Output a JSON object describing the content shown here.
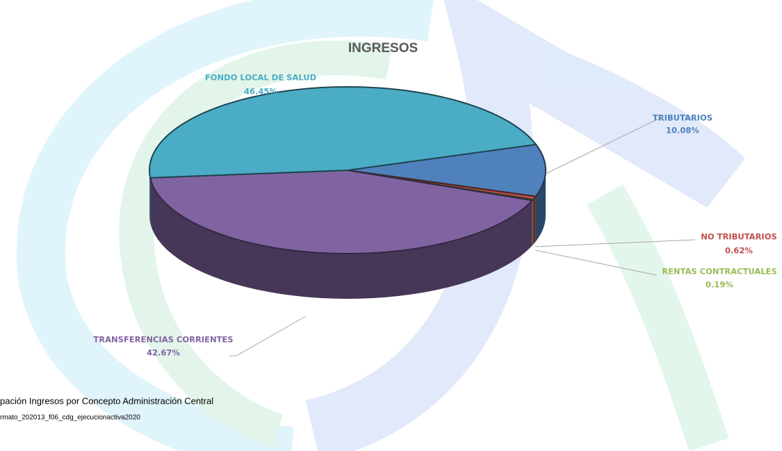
{
  "chart_data": {
    "type": "pie",
    "title": "INGRESOS",
    "categories": [
      "TRIBUTARIOS",
      "NO TRIBUTARIOS",
      "RENTAS CONTRACTUALES",
      "TRANSFERENCIAS CORRIENTES",
      "FONDO LOCAL DE SALUD"
    ],
    "values": [
      10.08,
      0.62,
      0.19,
      42.67,
      46.45
    ],
    "value_labels": [
      "10.08%",
      "0.62%",
      "0.19%",
      "42.67%",
      "46.45%"
    ],
    "colors": [
      "#4f81bd",
      "#c0504d",
      "#9bbb59",
      "#8064a2",
      "#4bacc6"
    ],
    "notes": [
      "pación Ingresos por Concepto Administración Central",
      "rmato_202013_f06_cdg_ejecucionactiva2020"
    ]
  }
}
